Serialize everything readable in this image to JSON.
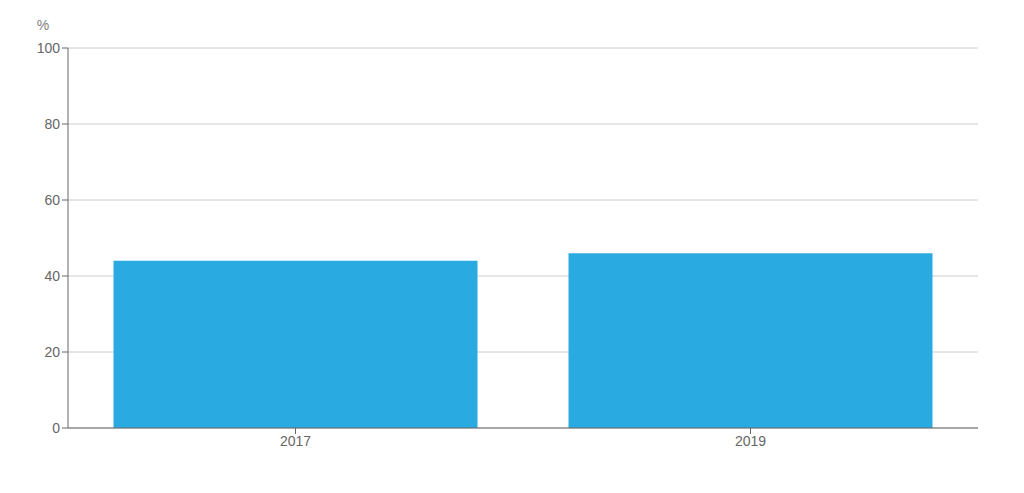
{
  "chart_data": {
    "type": "bar",
    "categories": [
      "2017",
      "2019"
    ],
    "values": [
      44,
      46
    ],
    "color": "#29ABE2",
    "ylabel": "%",
    "ylim": [
      0,
      100
    ],
    "yticks": [
      0,
      20,
      40,
      60,
      80,
      100
    ],
    "grid": true
  }
}
